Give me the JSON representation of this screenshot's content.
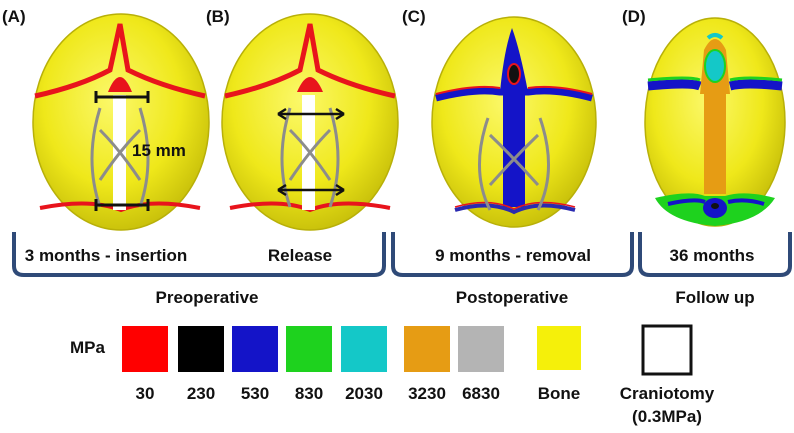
{
  "colors": {
    "bone": "#f2ee1c",
    "bone_shade": "#c9c20a",
    "suture_red": "#e8141c",
    "bracket_blue": "#2f4a78",
    "spring_gray": "#8c8c8c",
    "mpa_30": "#ff0000",
    "mpa_230": "#000000",
    "mpa_530": "#1414c8",
    "mpa_830": "#1ed21e",
    "mpa_2030": "#14c8c8",
    "mpa_3230": "#e69c14",
    "mpa_6830": "#b4b4b4",
    "bone_swatch": "#f5f00a"
  },
  "panels": [
    {
      "letter": "(A)",
      "caption": "3 months - insertion"
    },
    {
      "letter": "(B)",
      "caption": "Release"
    },
    {
      "letter": "(C)",
      "caption": "9 months - removal"
    },
    {
      "letter": "(D)",
      "caption": "36 months"
    }
  ],
  "measurement": "15 mm",
  "groups": [
    {
      "label": "Preoperative"
    },
    {
      "label": "Postoperative"
    },
    {
      "label": "Follow up"
    }
  ],
  "legend": {
    "unit": "MPa",
    "items": [
      {
        "label": "30",
        "color": "#ff0000"
      },
      {
        "label": "230",
        "color": "#000000"
      },
      {
        "label": "530",
        "color": "#1414c8"
      },
      {
        "label": "830",
        "color": "#1ed21e"
      },
      {
        "label": "2030",
        "color": "#14c8c8"
      },
      {
        "label": "3230",
        "color": "#e69c14"
      },
      {
        "label": "6830",
        "color": "#b4b4b4"
      },
      {
        "label": "Bone",
        "color": "#f5f00a"
      }
    ],
    "craniotomy_line1": "Craniotomy",
    "craniotomy_line2": "(0.3MPa)"
  }
}
